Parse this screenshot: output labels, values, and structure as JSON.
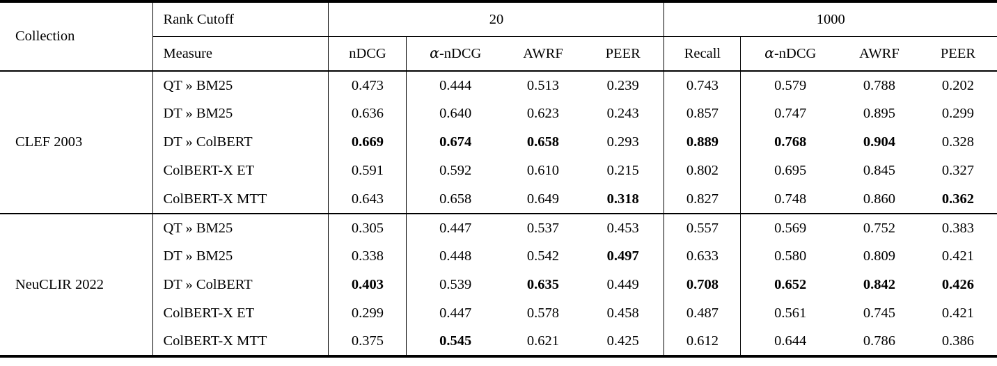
{
  "table": {
    "collection_header": "Collection",
    "rank_cutoff_label": "Rank Cutoff",
    "measure_label": "Measure",
    "cutoff_groups": [
      {
        "cutoff": "20",
        "measures": [
          "nDCG",
          "α-nDCG",
          "AWRF",
          "PEER"
        ]
      },
      {
        "cutoff": "1000",
        "measures": [
          "Recall",
          "α-nDCG",
          "AWRF",
          "PEER"
        ]
      }
    ],
    "groups": [
      {
        "collection": "CLEF 2003",
        "rows": [
          {
            "label": "QT » BM25",
            "values": [
              "0.473",
              "0.444",
              "0.513",
              "0.239",
              "0.743",
              "0.579",
              "0.788",
              "0.202"
            ],
            "bold": [
              0,
              0,
              0,
              0,
              0,
              0,
              0,
              0
            ]
          },
          {
            "label": "DT » BM25",
            "values": [
              "0.636",
              "0.640",
              "0.623",
              "0.243",
              "0.857",
              "0.747",
              "0.895",
              "0.299"
            ],
            "bold": [
              0,
              0,
              0,
              0,
              0,
              0,
              0,
              0
            ]
          },
          {
            "label": "DT » ColBERT",
            "values": [
              "0.669",
              "0.674",
              "0.658",
              "0.293",
              "0.889",
              "0.768",
              "0.904",
              "0.328"
            ],
            "bold": [
              1,
              1,
              1,
              0,
              1,
              1,
              1,
              0
            ]
          },
          {
            "label": "ColBERT-X ET",
            "values": [
              "0.591",
              "0.592",
              "0.610",
              "0.215",
              "0.802",
              "0.695",
              "0.845",
              "0.327"
            ],
            "bold": [
              0,
              0,
              0,
              0,
              0,
              0,
              0,
              0
            ]
          },
          {
            "label": "ColBERT-X MTT",
            "values": [
              "0.643",
              "0.658",
              "0.649",
              "0.318",
              "0.827",
              "0.748",
              "0.860",
              "0.362"
            ],
            "bold": [
              0,
              0,
              0,
              1,
              0,
              0,
              0,
              1
            ]
          }
        ]
      },
      {
        "collection": "NeuCLIR 2022",
        "rows": [
          {
            "label": "QT » BM25",
            "values": [
              "0.305",
              "0.447",
              "0.537",
              "0.453",
              "0.557",
              "0.569",
              "0.752",
              "0.383"
            ],
            "bold": [
              0,
              0,
              0,
              0,
              0,
              0,
              0,
              0
            ]
          },
          {
            "label": "DT » BM25",
            "values": [
              "0.338",
              "0.448",
              "0.542",
              "0.497",
              "0.633",
              "0.580",
              "0.809",
              "0.421"
            ],
            "bold": [
              0,
              0,
              0,
              1,
              0,
              0,
              0,
              0
            ]
          },
          {
            "label": "DT » ColBERT",
            "values": [
              "0.403",
              "0.539",
              "0.635",
              "0.449",
              "0.708",
              "0.652",
              "0.842",
              "0.426"
            ],
            "bold": [
              1,
              0,
              1,
              0,
              1,
              1,
              1,
              1
            ]
          },
          {
            "label": "ColBERT-X ET",
            "values": [
              "0.299",
              "0.447",
              "0.578",
              "0.458",
              "0.487",
              "0.561",
              "0.745",
              "0.421"
            ],
            "bold": [
              0,
              0,
              0,
              0,
              0,
              0,
              0,
              0
            ]
          },
          {
            "label": "ColBERT-X MTT",
            "values": [
              "0.375",
              "0.545",
              "0.621",
              "0.425",
              "0.612",
              "0.644",
              "0.786",
              "0.386"
            ],
            "bold": [
              0,
              1,
              0,
              0,
              0,
              0,
              0,
              0
            ]
          }
        ]
      }
    ]
  }
}
